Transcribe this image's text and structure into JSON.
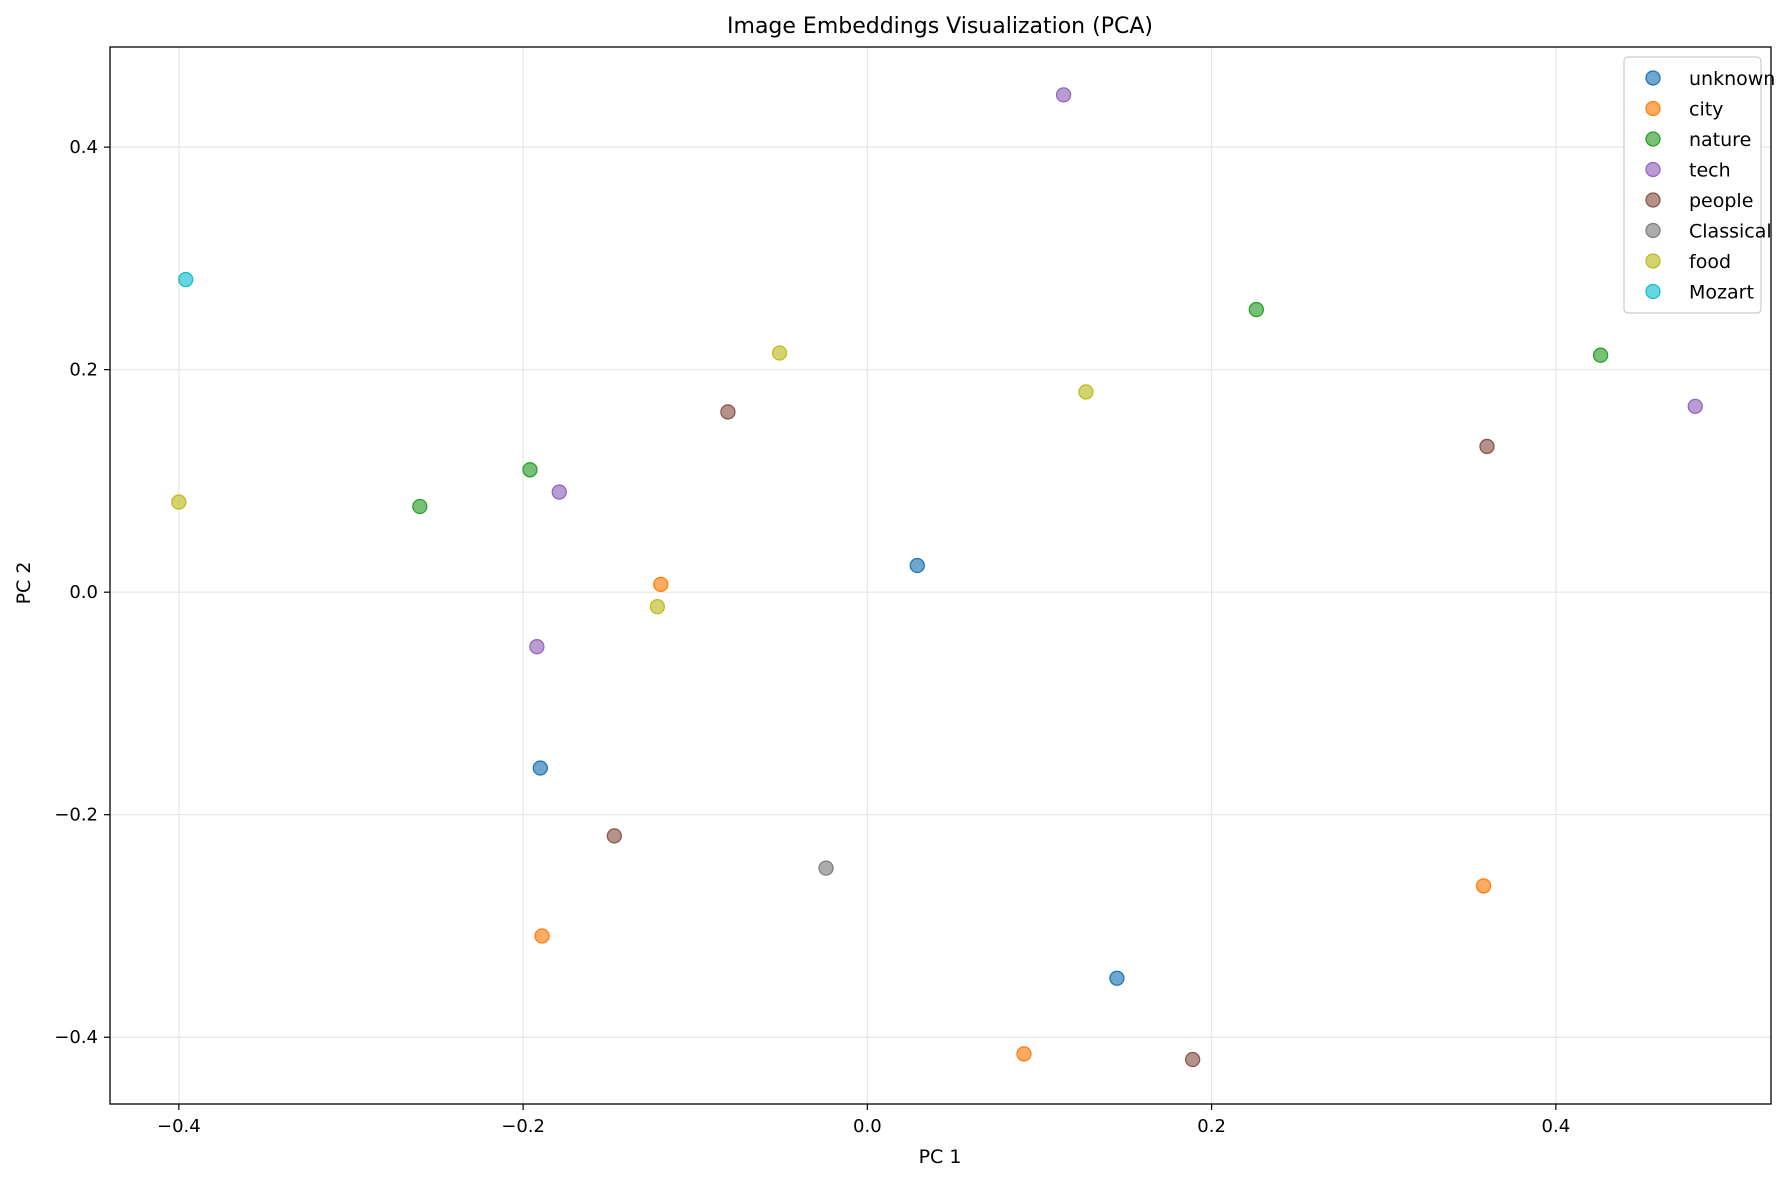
{
  "chart_data": {
    "type": "scatter",
    "title": "Image Embeddings Visualization (PCA)",
    "xlabel": "PC 1",
    "ylabel": "PC 2",
    "xlim": [
      -0.44,
      0.525
    ],
    "ylim": [
      -0.46,
      0.49
    ],
    "xticks": [
      -0.4,
      -0.2,
      0.0,
      0.2,
      0.4
    ],
    "yticks": [
      -0.4,
      -0.2,
      0.0,
      0.2,
      0.4
    ],
    "xtick_labels": [
      "−0.4",
      "−0.2",
      "0.0",
      "0.2",
      "0.4"
    ],
    "ytick_labels": [
      "−0.4",
      "−0.2",
      "0.0",
      "0.2",
      "0.4"
    ],
    "grid": true,
    "legend_position": "top-right",
    "series": [
      {
        "name": "unknown",
        "color": "#1f77b4",
        "points": [
          [
            0.029,
            0.024
          ],
          [
            -0.19,
            -0.158
          ],
          [
            0.145,
            -0.347
          ]
        ]
      },
      {
        "name": "city",
        "color": "#ff7f0e",
        "points": [
          [
            -0.12,
            0.007
          ],
          [
            -0.189,
            -0.309
          ],
          [
            0.358,
            -0.264
          ],
          [
            0.091,
            -0.415
          ]
        ]
      },
      {
        "name": "nature",
        "color": "#2ca02c",
        "points": [
          [
            0.226,
            0.254
          ],
          [
            0.426,
            0.213
          ],
          [
            -0.196,
            0.11
          ],
          [
            -0.26,
            0.077
          ]
        ]
      },
      {
        "name": "tech",
        "color": "#9467bd",
        "points": [
          [
            0.114,
            0.447
          ],
          [
            0.481,
            0.167
          ],
          [
            -0.179,
            0.09
          ],
          [
            -0.192,
            -0.049
          ]
        ]
      },
      {
        "name": "people",
        "color": "#8c564b",
        "points": [
          [
            -0.081,
            0.162
          ],
          [
            0.36,
            0.131
          ],
          [
            -0.147,
            -0.219
          ],
          [
            0.189,
            -0.42
          ]
        ]
      },
      {
        "name": "Classical",
        "color": "#7f7f7f",
        "points": [
          [
            -0.024,
            -0.248
          ]
        ]
      },
      {
        "name": "food",
        "color": "#bcbd22",
        "points": [
          [
            -0.051,
            0.215
          ],
          [
            0.127,
            0.18
          ],
          [
            -0.4,
            0.081
          ],
          [
            -0.122,
            -0.013
          ]
        ]
      },
      {
        "name": "Mozart",
        "color": "#17becf",
        "points": [
          [
            -0.396,
            0.281
          ]
        ]
      }
    ]
  }
}
